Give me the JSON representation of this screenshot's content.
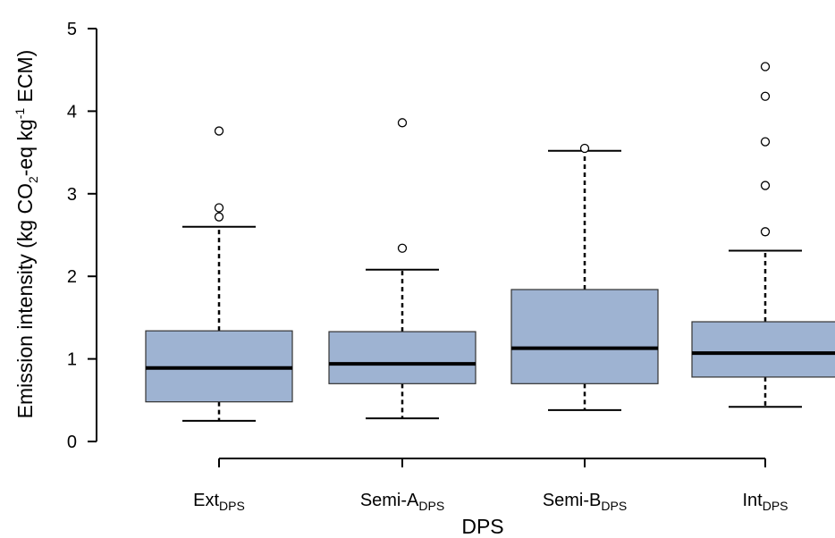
{
  "chart_data": {
    "type": "boxplot",
    "xlabel": "DPS",
    "ylabel": {
      "prefix": "Emission intensity (kg CO",
      "sub1": "2",
      "mid": "-eq kg",
      "sup": "-1",
      "suffix": " ECM)"
    },
    "ylim": [
      0,
      5
    ],
    "yticks": [
      "0",
      "1",
      "2",
      "3",
      "4",
      "5"
    ],
    "categories": [
      {
        "base": "Ext",
        "sub": "DPS"
      },
      {
        "base": "Semi-A",
        "sub": "DPS"
      },
      {
        "base": "Semi-B",
        "sub": "DPS"
      },
      {
        "base": "Int",
        "sub": "DPS"
      }
    ],
    "boxes": [
      {
        "whisker_low": 0.25,
        "q1": 0.48,
        "median": 0.89,
        "q3": 1.34,
        "whisker_high": 2.6,
        "outliers": [
          2.72,
          2.83,
          3.76
        ]
      },
      {
        "whisker_low": 0.28,
        "q1": 0.7,
        "median": 0.94,
        "q3": 1.33,
        "whisker_high": 2.08,
        "outliers": [
          2.34,
          3.86
        ]
      },
      {
        "whisker_low": 0.38,
        "q1": 0.7,
        "median": 1.13,
        "q3": 1.84,
        "whisker_high": 3.52,
        "outliers": [
          3.55
        ]
      },
      {
        "whisker_low": 0.42,
        "q1": 0.78,
        "median": 1.07,
        "q3": 1.45,
        "whisker_high": 2.31,
        "outliers": [
          2.54,
          3.1,
          3.63,
          4.18,
          4.54
        ]
      }
    ],
    "box_color": "#9eb3d2",
    "grid": false,
    "legend": "none"
  }
}
